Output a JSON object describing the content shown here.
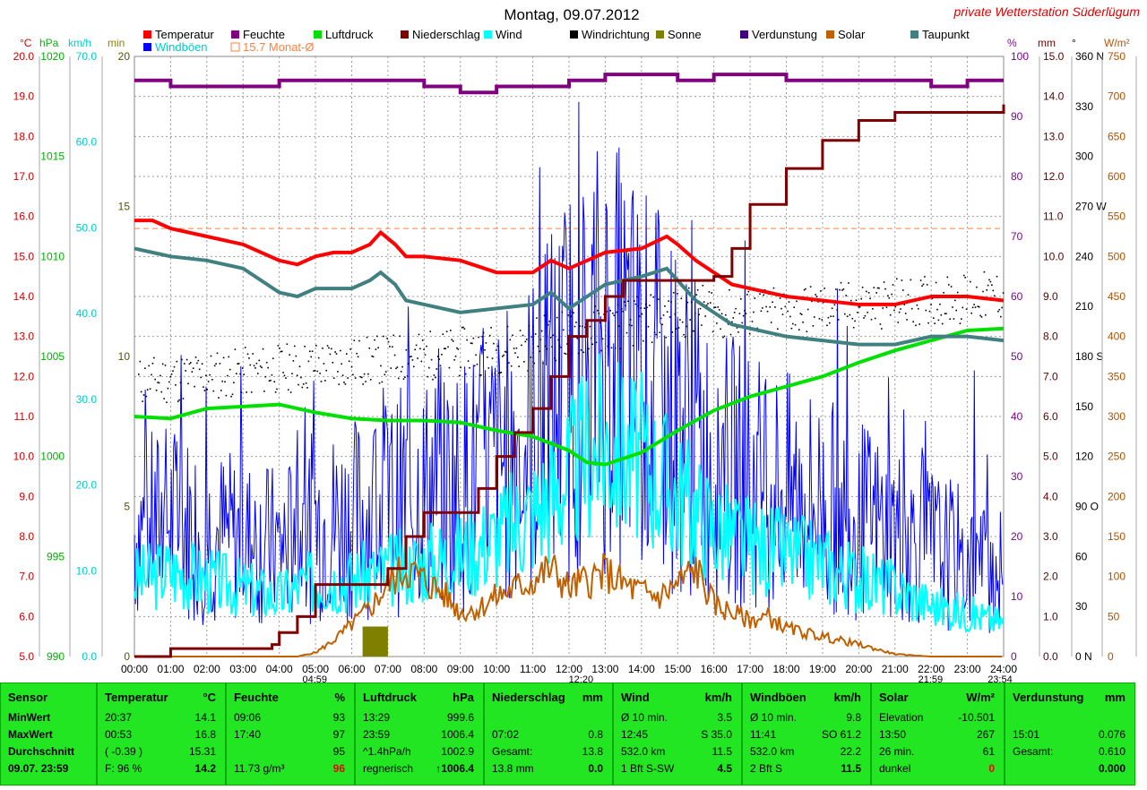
{
  "title": "Montag, 09.07.2012",
  "station": "private Wetterstation Süderlügum",
  "legend": [
    {
      "label": "Temperatur",
      "color": "#ff0000"
    },
    {
      "label": "Feuchte",
      "color": "#800080"
    },
    {
      "label": "Luftdruck",
      "color": "#00e000"
    },
    {
      "label": "Niederschlag",
      "color": "#800000"
    },
    {
      "label": "Wind",
      "color": "#00ffff"
    },
    {
      "label": "Windrichtung",
      "color": "#000000"
    },
    {
      "label": "Sonne",
      "color": "#808000"
    },
    {
      "label": "Verdunstung",
      "color": "#400080"
    },
    {
      "label": "Solar",
      "color": "#c06000"
    },
    {
      "label": "Taupunkt",
      "color": "#408080"
    },
    {
      "label": "Windböen",
      "color": "#0000ff"
    },
    {
      "label": "15.7 Monat-Ø",
      "color": "#ff8040"
    }
  ],
  "axis_units": {
    "temp": "°C",
    "hpa": "hPa",
    "kmh": "km/h",
    "min": "min",
    "pct": "%",
    "mm": "mm",
    "deg": "°",
    "wm2": "W/m²"
  },
  "chart_data": {
    "type": "line",
    "xlabel": "time",
    "x_ticks": [
      "00:00",
      "01:00",
      "02:00",
      "03:00",
      "04:00",
      "05:00",
      "06:00",
      "07:00",
      "08:00",
      "09:00",
      "10:00",
      "11:00",
      "12:00",
      "13:00",
      "14:00",
      "15:00",
      "16:00",
      "17:00",
      "18:00",
      "19:00",
      "20:00",
      "21:00",
      "22:00",
      "23:00",
      "24:00"
    ],
    "marker_labels": [
      "04:59",
      "12:20",
      "21:59",
      "23:54"
    ],
    "axes": {
      "temp": {
        "range": [
          5,
          20
        ],
        "ticks": [
          "5.0",
          "6.0",
          "7.0",
          "8.0",
          "9.0",
          "10.0",
          "11.0",
          "12.0",
          "13.0",
          "14.0",
          "15.0",
          "16.0",
          "17.0",
          "18.0",
          "19.0",
          "20.0"
        ]
      },
      "pressure": {
        "range": [
          990,
          1020
        ],
        "ticks": [
          "990",
          "995",
          "1000",
          "1005",
          "1010",
          "1015",
          "1020"
        ]
      },
      "wind": {
        "range": [
          0,
          70
        ],
        "ticks": [
          "0.0",
          "10.0",
          "20.0",
          "30.0",
          "40.0",
          "50.0",
          "60.0",
          "70.0"
        ]
      },
      "sun_min": {
        "range": [
          0,
          20
        ],
        "ticks": [
          "0",
          "5",
          "10",
          "15",
          "20"
        ]
      },
      "humidity": {
        "range": [
          0,
          100
        ],
        "ticks": [
          "0",
          "10",
          "20",
          "30",
          "40",
          "50",
          "60",
          "70",
          "80",
          "90",
          "100"
        ]
      },
      "rain": {
        "range": [
          0,
          15
        ],
        "ticks": [
          "0.0",
          "1.0",
          "2.0",
          "3.0",
          "4.0",
          "5.0",
          "6.0",
          "7.0",
          "8.0",
          "9.0",
          "10.0",
          "11.0",
          "12.0",
          "13.0",
          "14.0",
          "15.0"
        ]
      },
      "direction": {
        "range": [
          0,
          360
        ],
        "ticks": [
          "0 N",
          "30",
          "60",
          "90 O",
          "120",
          "150",
          "180 S",
          "210",
          "240",
          "270 W",
          "300",
          "330",
          "360 N"
        ]
      },
      "solar": {
        "range": [
          0,
          750
        ],
        "ticks": [
          "0",
          "50",
          "100",
          "150",
          "200",
          "250",
          "300",
          "350",
          "400",
          "450",
          "500",
          "550",
          "600",
          "650",
          "700",
          "750"
        ]
      }
    },
    "month_avg_temp": 15.7,
    "series": [
      {
        "name": "Temperatur",
        "axis": "temp",
        "x": [
          0,
          0.5,
          1,
          2,
          3,
          4,
          4.5,
          5,
          5.5,
          6,
          6.5,
          6.8,
          7.2,
          7.5,
          8,
          9,
          10,
          11,
          11.5,
          12,
          12.5,
          13,
          14,
          14.7,
          15,
          15.5,
          16,
          16.5,
          17,
          18,
          19,
          20,
          21,
          22,
          23,
          24
        ],
        "values": [
          15.9,
          15.9,
          15.7,
          15.5,
          15.3,
          14.9,
          14.8,
          15.0,
          15.1,
          15.1,
          15.3,
          15.6,
          15.3,
          15.0,
          15.0,
          14.9,
          14.6,
          14.6,
          14.9,
          14.7,
          14.9,
          15.1,
          15.2,
          15.5,
          15.3,
          14.9,
          14.6,
          14.3,
          14.2,
          14.0,
          13.9,
          13.8,
          13.8,
          14.0,
          14.0,
          13.9
        ]
      },
      {
        "name": "Taupunkt",
        "axis": "temp",
        "x": [
          0,
          0.5,
          1,
          2,
          3,
          4,
          4.5,
          5,
          5.5,
          6,
          6.5,
          6.8,
          7.2,
          7.5,
          8,
          9,
          10,
          11,
          11.5,
          12,
          12.5,
          13,
          14,
          14.7,
          15,
          15.5,
          16,
          16.5,
          17,
          18,
          19,
          20,
          21,
          22,
          23,
          24
        ],
        "values": [
          15.2,
          15.1,
          15.0,
          14.9,
          14.7,
          14.1,
          14.0,
          14.2,
          14.2,
          14.2,
          14.4,
          14.6,
          14.3,
          13.9,
          13.8,
          13.6,
          13.7,
          13.8,
          14.1,
          13.7,
          14.0,
          14.3,
          14.5,
          14.7,
          14.4,
          13.9,
          13.6,
          13.3,
          13.2,
          13.0,
          12.9,
          12.8,
          12.8,
          13.0,
          13.0,
          12.9
        ]
      },
      {
        "name": "Feuchte",
        "axis": "humidity",
        "x": [
          0,
          1,
          2,
          3,
          4,
          5,
          6,
          7,
          8,
          9,
          10,
          11,
          12,
          13,
          14,
          15,
          16,
          17,
          18,
          19,
          20,
          21,
          22,
          23,
          24
        ],
        "values": [
          96,
          95,
          95,
          95,
          96,
          96,
          96,
          96,
          95,
          94,
          95,
          95,
          96,
          97,
          97,
          96,
          97,
          97,
          96,
          96,
          96,
          96,
          95,
          96,
          96
        ]
      },
      {
        "name": "Luftdruck",
        "axis": "pressure",
        "x": [
          0,
          1,
          2,
          3,
          4,
          5,
          6,
          7,
          8,
          9,
          10,
          11,
          12,
          12.5,
          13,
          14,
          15,
          16,
          17,
          18,
          19,
          20,
          21,
          22,
          23,
          24
        ],
        "values": [
          1002.0,
          1001.9,
          1002.4,
          1002.5,
          1002.6,
          1002.2,
          1001.9,
          1001.8,
          1001.8,
          1001.7,
          1001.3,
          1001.0,
          1000.3,
          999.7,
          999.6,
          1000.2,
          1001.3,
          1002.3,
          1003.0,
          1003.5,
          1004.0,
          1004.7,
          1005.3,
          1005.8,
          1006.3,
          1006.4
        ]
      },
      {
        "name": "Niederschlag",
        "axis": "rain",
        "x": [
          0,
          0.7,
          1,
          2,
          3,
          3.8,
          4,
          4.5,
          5,
          5.5,
          6,
          6.8,
          7,
          7.5,
          8,
          9,
          9.5,
          10,
          10.5,
          11,
          11.5,
          12,
          12.5,
          13,
          13.5,
          14,
          15,
          15.5,
          16,
          16.5,
          17,
          18,
          19,
          20,
          21,
          22,
          23,
          24
        ],
        "values": [
          0,
          0,
          0.2,
          0.2,
          0.2,
          0.3,
          0.6,
          1.0,
          1.8,
          1.8,
          1.8,
          1.8,
          2.2,
          3.0,
          3.6,
          3.6,
          4.2,
          5.0,
          5.6,
          6.2,
          7.0,
          8.0,
          8.4,
          9.0,
          9.4,
          9.4,
          9.4,
          9.4,
          9.5,
          10.2,
          11.3,
          12.2,
          12.9,
          13.4,
          13.6,
          13.6,
          13.6,
          13.8
        ]
      },
      {
        "name": "Solar",
        "axis": "solar",
        "x": [
          0,
          4.5,
          5,
          5.5,
          6,
          6.5,
          7,
          7.5,
          8,
          8.5,
          9,
          9.5,
          10,
          10.5,
          11,
          11.5,
          12,
          12.5,
          13,
          13.5,
          14,
          14.5,
          15,
          15.5,
          16,
          16.5,
          17,
          17.5,
          18,
          19,
          20,
          21,
          22,
          24
        ],
        "values": [
          0,
          0,
          5,
          20,
          40,
          60,
          90,
          110,
          95,
          80,
          55,
          60,
          75,
          85,
          95,
          110,
          85,
          95,
          105,
          90,
          80,
          75,
          90,
          110,
          65,
          55,
          45,
          50,
          35,
          25,
          15,
          3,
          0,
          0
        ]
      },
      {
        "name": "Wind",
        "axis": "wind",
        "x": [
          0,
          1,
          2,
          3,
          4,
          5,
          6,
          7,
          8,
          9,
          10,
          11,
          12,
          12.5,
          13,
          14,
          15,
          16,
          17,
          18,
          19,
          20,
          21,
          22,
          23,
          24
        ],
        "values": [
          9,
          10,
          9,
          8,
          7,
          9,
          9,
          10,
          11,
          12,
          14,
          17,
          21,
          24,
          25,
          23,
          19,
          15,
          13,
          12,
          11,
          9,
          8,
          6,
          5,
          4
        ]
      },
      {
        "name": "Windböen",
        "axis": "wind",
        "x": [
          0,
          1,
          2,
          3,
          4,
          5,
          6,
          7,
          8,
          9,
          10,
          11,
          12,
          12.5,
          13,
          14,
          15,
          16,
          17,
          18,
          19,
          20,
          21,
          22,
          23,
          24
        ],
        "values": [
          18,
          20,
          18,
          17,
          16,
          19,
          20,
          22,
          24,
          25,
          28,
          33,
          40,
          42,
          45,
          40,
          35,
          28,
          26,
          24,
          22,
          20,
          18,
          16,
          14,
          12
        ]
      },
      {
        "name": "Sonne",
        "axis": "sun_min",
        "x": [
          6.3,
          7.0
        ],
        "values": [
          1,
          1
        ]
      }
    ]
  },
  "table": {
    "sensor": {
      "header": "Sensor",
      "rows": [
        "MinWert",
        "MaxWert",
        "Durchschnitt",
        "09.07. 23:59"
      ]
    },
    "temp": {
      "header": "Temperatur",
      "unit": "°C",
      "rows": [
        [
          "20:37",
          "14.1"
        ],
        [
          "00:53",
          "16.8"
        ],
        [
          "( -0.39 )",
          "15.31"
        ],
        [
          "F: 96 %",
          "14.2"
        ]
      ]
    },
    "humidity": {
      "header": "Feuchte",
      "unit": "%",
      "rows": [
        [
          "09:06",
          "93"
        ],
        [
          "17:40",
          "97"
        ],
        [
          "",
          "95"
        ],
        [
          "11.73 g/m³",
          "96"
        ]
      ]
    },
    "pressure": {
      "header": "Luftdruck",
      "unit": "hPa",
      "rows": [
        [
          "13:29",
          "999.6"
        ],
        [
          "23:59",
          "1006.4"
        ],
        [
          "^1.4hPa/h",
          "1002.9"
        ],
        [
          "regnerisch",
          "↑1006.4"
        ]
      ]
    },
    "rain": {
      "header": "Niederschlag",
      "unit": "mm",
      "rows": [
        [
          "",
          ""
        ],
        [
          "07:02",
          "0.8"
        ],
        [
          "Gesamt:",
          "13.8"
        ],
        [
          "13.8 mm",
          "0.0"
        ]
      ]
    },
    "wind": {
      "header": "Wind",
      "unit": "km/h",
      "rows": [
        [
          "Ø 10 min.",
          "3.5"
        ],
        [
          "12:45",
          "S 35.0"
        ],
        [
          "532.0 km",
          "11.5"
        ],
        [
          "1 Bft S-SW",
          "4.5"
        ]
      ]
    },
    "gusts": {
      "header": "Windböen",
      "unit": "km/h",
      "rows": [
        [
          "Ø 10 min.",
          "9.8"
        ],
        [
          "11:41",
          "SO 61.2"
        ],
        [
          "532.0 km",
          "22.2"
        ],
        [
          "2 Bft S",
          "11.5"
        ]
      ]
    },
    "solar": {
      "header": "Solar",
      "unit": "W/m²",
      "rows": [
        [
          "Elevation",
          "-10.501"
        ],
        [
          "13:50",
          "267"
        ],
        [
          "26 min.",
          "61"
        ],
        [
          "dunkel",
          "0"
        ]
      ]
    },
    "evap": {
      "header": "Verdunstung",
      "unit": "mm",
      "rows": [
        [
          "",
          ""
        ],
        [
          "15:01",
          "0.076"
        ],
        [
          "Gesamt:",
          "0.610"
        ],
        [
          "",
          "0.000"
        ]
      ]
    }
  }
}
